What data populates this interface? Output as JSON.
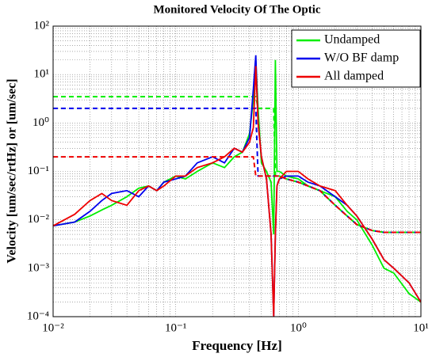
{
  "chart_data": {
    "type": "line",
    "title": "Monitored Velocity Of The Optic",
    "xlabel": "Frequency [Hz]",
    "ylabel": "Velocity [um/sec/rtHz] or [um/sec]",
    "log_x": true,
    "log_y": true,
    "grid": true,
    "legend": "top-right",
    "x": [
      0.01,
      0.015,
      0.02,
      0.025,
      0.03,
      0.04,
      0.05,
      0.06,
      0.07,
      0.08,
      0.1,
      0.12,
      0.15,
      0.2,
      0.25,
      0.3,
      0.35,
      0.4,
      0.43,
      0.45,
      0.47,
      0.5,
      0.55,
      0.6,
      0.63,
      0.65,
      0.67,
      0.7,
      0.8,
      1,
      1.2,
      1.5,
      2,
      2.5,
      3,
      4,
      5,
      6,
      8,
      10
    ],
    "series": [
      {
        "name": "Undamped",
        "color": "#00ee00",
        "values": [
          0.0075,
          0.009,
          0.012,
          0.016,
          0.02,
          0.03,
          0.045,
          0.05,
          0.04,
          0.06,
          0.08,
          0.07,
          0.1,
          0.15,
          0.12,
          0.2,
          0.25,
          0.6,
          3,
          20,
          2,
          0.15,
          0.1,
          0.06,
          0.005,
          20,
          0.1,
          0.1,
          0.08,
          0.07,
          0.05,
          0.04,
          0.03,
          0.015,
          0.01,
          0.003,
          0.001,
          0.0008,
          0.0003,
          0.0002
        ],
        "rms": [
          3.5,
          3.5,
          3.5,
          3.5,
          3.5,
          3.5,
          3.5,
          3.5,
          3.5,
          3.5,
          3.5,
          3.5,
          3.5,
          3.5,
          3.5,
          3.5,
          3.5,
          3.5,
          3.5,
          3.5,
          2,
          2,
          2,
          2,
          2,
          0.08,
          0.08,
          0.08,
          0.07,
          0.06,
          0.05,
          0.04,
          0.02,
          0.012,
          0.008,
          0.006,
          0.0055,
          0.0055,
          0.0055,
          0.0055
        ]
      },
      {
        "name": "W/O BF damp",
        "color": "#0000ee",
        "values": [
          0.0075,
          0.009,
          0.015,
          0.025,
          0.035,
          0.04,
          0.03,
          0.05,
          0.04,
          0.06,
          0.07,
          0.08,
          0.15,
          0.2,
          0.15,
          0.3,
          0.25,
          0.5,
          5,
          25,
          1,
          0.2,
          0.07,
          0.005,
          0.0001,
          0.005,
          0.05,
          0.07,
          0.08,
          0.08,
          0.06,
          0.05,
          0.03,
          0.02,
          0.012,
          0.004,
          0.0015,
          0.001,
          0.0005,
          0.0002
        ],
        "rms": [
          2,
          2,
          2,
          2,
          2,
          2,
          2,
          2,
          2,
          2,
          2,
          2,
          2,
          2,
          2,
          2,
          2,
          2,
          2,
          2,
          0.08,
          0.08,
          0.08,
          0.08,
          0.08,
          0.08,
          0.08,
          0.08,
          0.07,
          0.06,
          0.05,
          0.04,
          0.02,
          0.012,
          0.008,
          0.006,
          0.0055,
          0.0055,
          0.0055,
          0.0055
        ]
      },
      {
        "name": "All damped",
        "color": "#ee0000",
        "values": [
          0.0075,
          0.013,
          0.025,
          0.035,
          0.025,
          0.02,
          0.04,
          0.05,
          0.04,
          0.05,
          0.08,
          0.08,
          0.12,
          0.15,
          0.2,
          0.3,
          0.25,
          0.4,
          0.8,
          15,
          1,
          0.2,
          0.07,
          0.005,
          0.0001,
          0.005,
          0.05,
          0.07,
          0.1,
          0.1,
          0.07,
          0.05,
          0.04,
          0.02,
          0.012,
          0.004,
          0.0015,
          0.001,
          0.0005,
          0.0002
        ],
        "rms": [
          0.2,
          0.2,
          0.2,
          0.2,
          0.2,
          0.2,
          0.2,
          0.2,
          0.2,
          0.2,
          0.2,
          0.2,
          0.2,
          0.2,
          0.2,
          0.2,
          0.2,
          0.2,
          0.2,
          0.08,
          0.08,
          0.08,
          0.08,
          0.08,
          0.08,
          0.08,
          0.08,
          0.08,
          0.07,
          0.06,
          0.05,
          0.04,
          0.02,
          0.012,
          0.008,
          0.006,
          0.0055,
          0.0055,
          0.0055,
          0.0055
        ]
      }
    ],
    "xlim": [
      0.01,
      10
    ],
    "xticks": [
      {
        "value": 0.01,
        "label": "10⁻²"
      },
      {
        "value": 0.1,
        "label": "10⁻¹"
      },
      {
        "value": 1,
        "label": "10⁰"
      },
      {
        "value": 10,
        "label": "10¹"
      }
    ],
    "ylim": [
      0.0001,
      100
    ],
    "yticks": [
      {
        "value": 0.0001,
        "label": "10⁻⁴"
      },
      {
        "value": 0.001,
        "label": "10⁻³"
      },
      {
        "value": 0.01,
        "label": "10⁻²"
      },
      {
        "value": 0.1,
        "label": "10⁻¹"
      },
      {
        "value": 1,
        "label": "10⁰"
      },
      {
        "value": 10,
        "label": "10¹"
      },
      {
        "value": 100,
        "label": "10²"
      }
    ]
  }
}
